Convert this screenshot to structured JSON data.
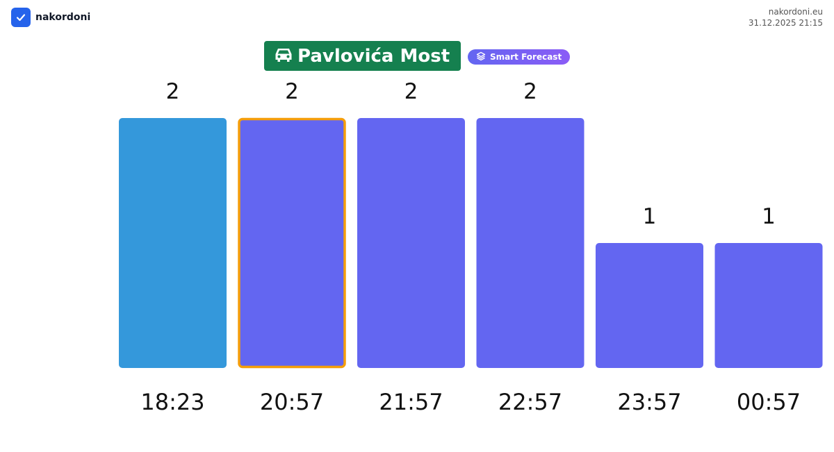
{
  "header": {
    "brand_name": "nakordoni",
    "site": "nakordoni.eu",
    "timestamp": "31.12.2025 21:15"
  },
  "title": {
    "icon": "car-icon",
    "text": "Pavlovića Most"
  },
  "badge": {
    "icon": "layers-icon",
    "text": "Smart Forecast"
  },
  "colors": {
    "current_bar": "#3498db",
    "forecast_bar": "#6366f1",
    "highlight_border": "#f59e0b",
    "title_bg": "#15804f"
  },
  "chart_data": {
    "type": "bar",
    "categories": [
      "18:23",
      "20:57",
      "21:57",
      "22:57",
      "23:57",
      "00:57"
    ],
    "values": [
      2,
      2,
      2,
      2,
      1,
      1
    ],
    "highlighted_index": 1,
    "current_index": 0,
    "title": "",
    "xlabel": "",
    "ylabel": "",
    "ylim": [
      0,
      2
    ]
  }
}
